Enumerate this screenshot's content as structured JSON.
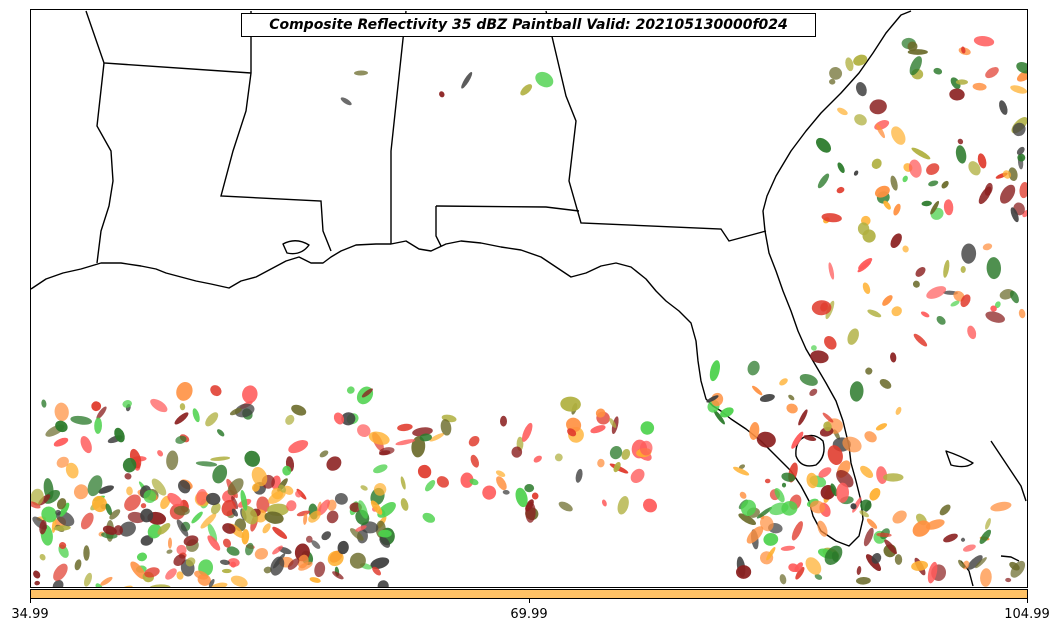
{
  "title": "Composite Reflectivity 35 dBZ Paintball Valid: 202105130000f024",
  "colorbar": {
    "color": "#ffc266",
    "ticks": [
      "34.99",
      "69.99",
      "104.99"
    ]
  },
  "paintball_colors": [
    "#e03a2c",
    "#ff5a5a",
    "#2b7a2b",
    "#4dd24d",
    "#ff9040",
    "#ffb030",
    "#b0b040",
    "#8b2020",
    "#404040",
    "#6b6b2b"
  ]
}
